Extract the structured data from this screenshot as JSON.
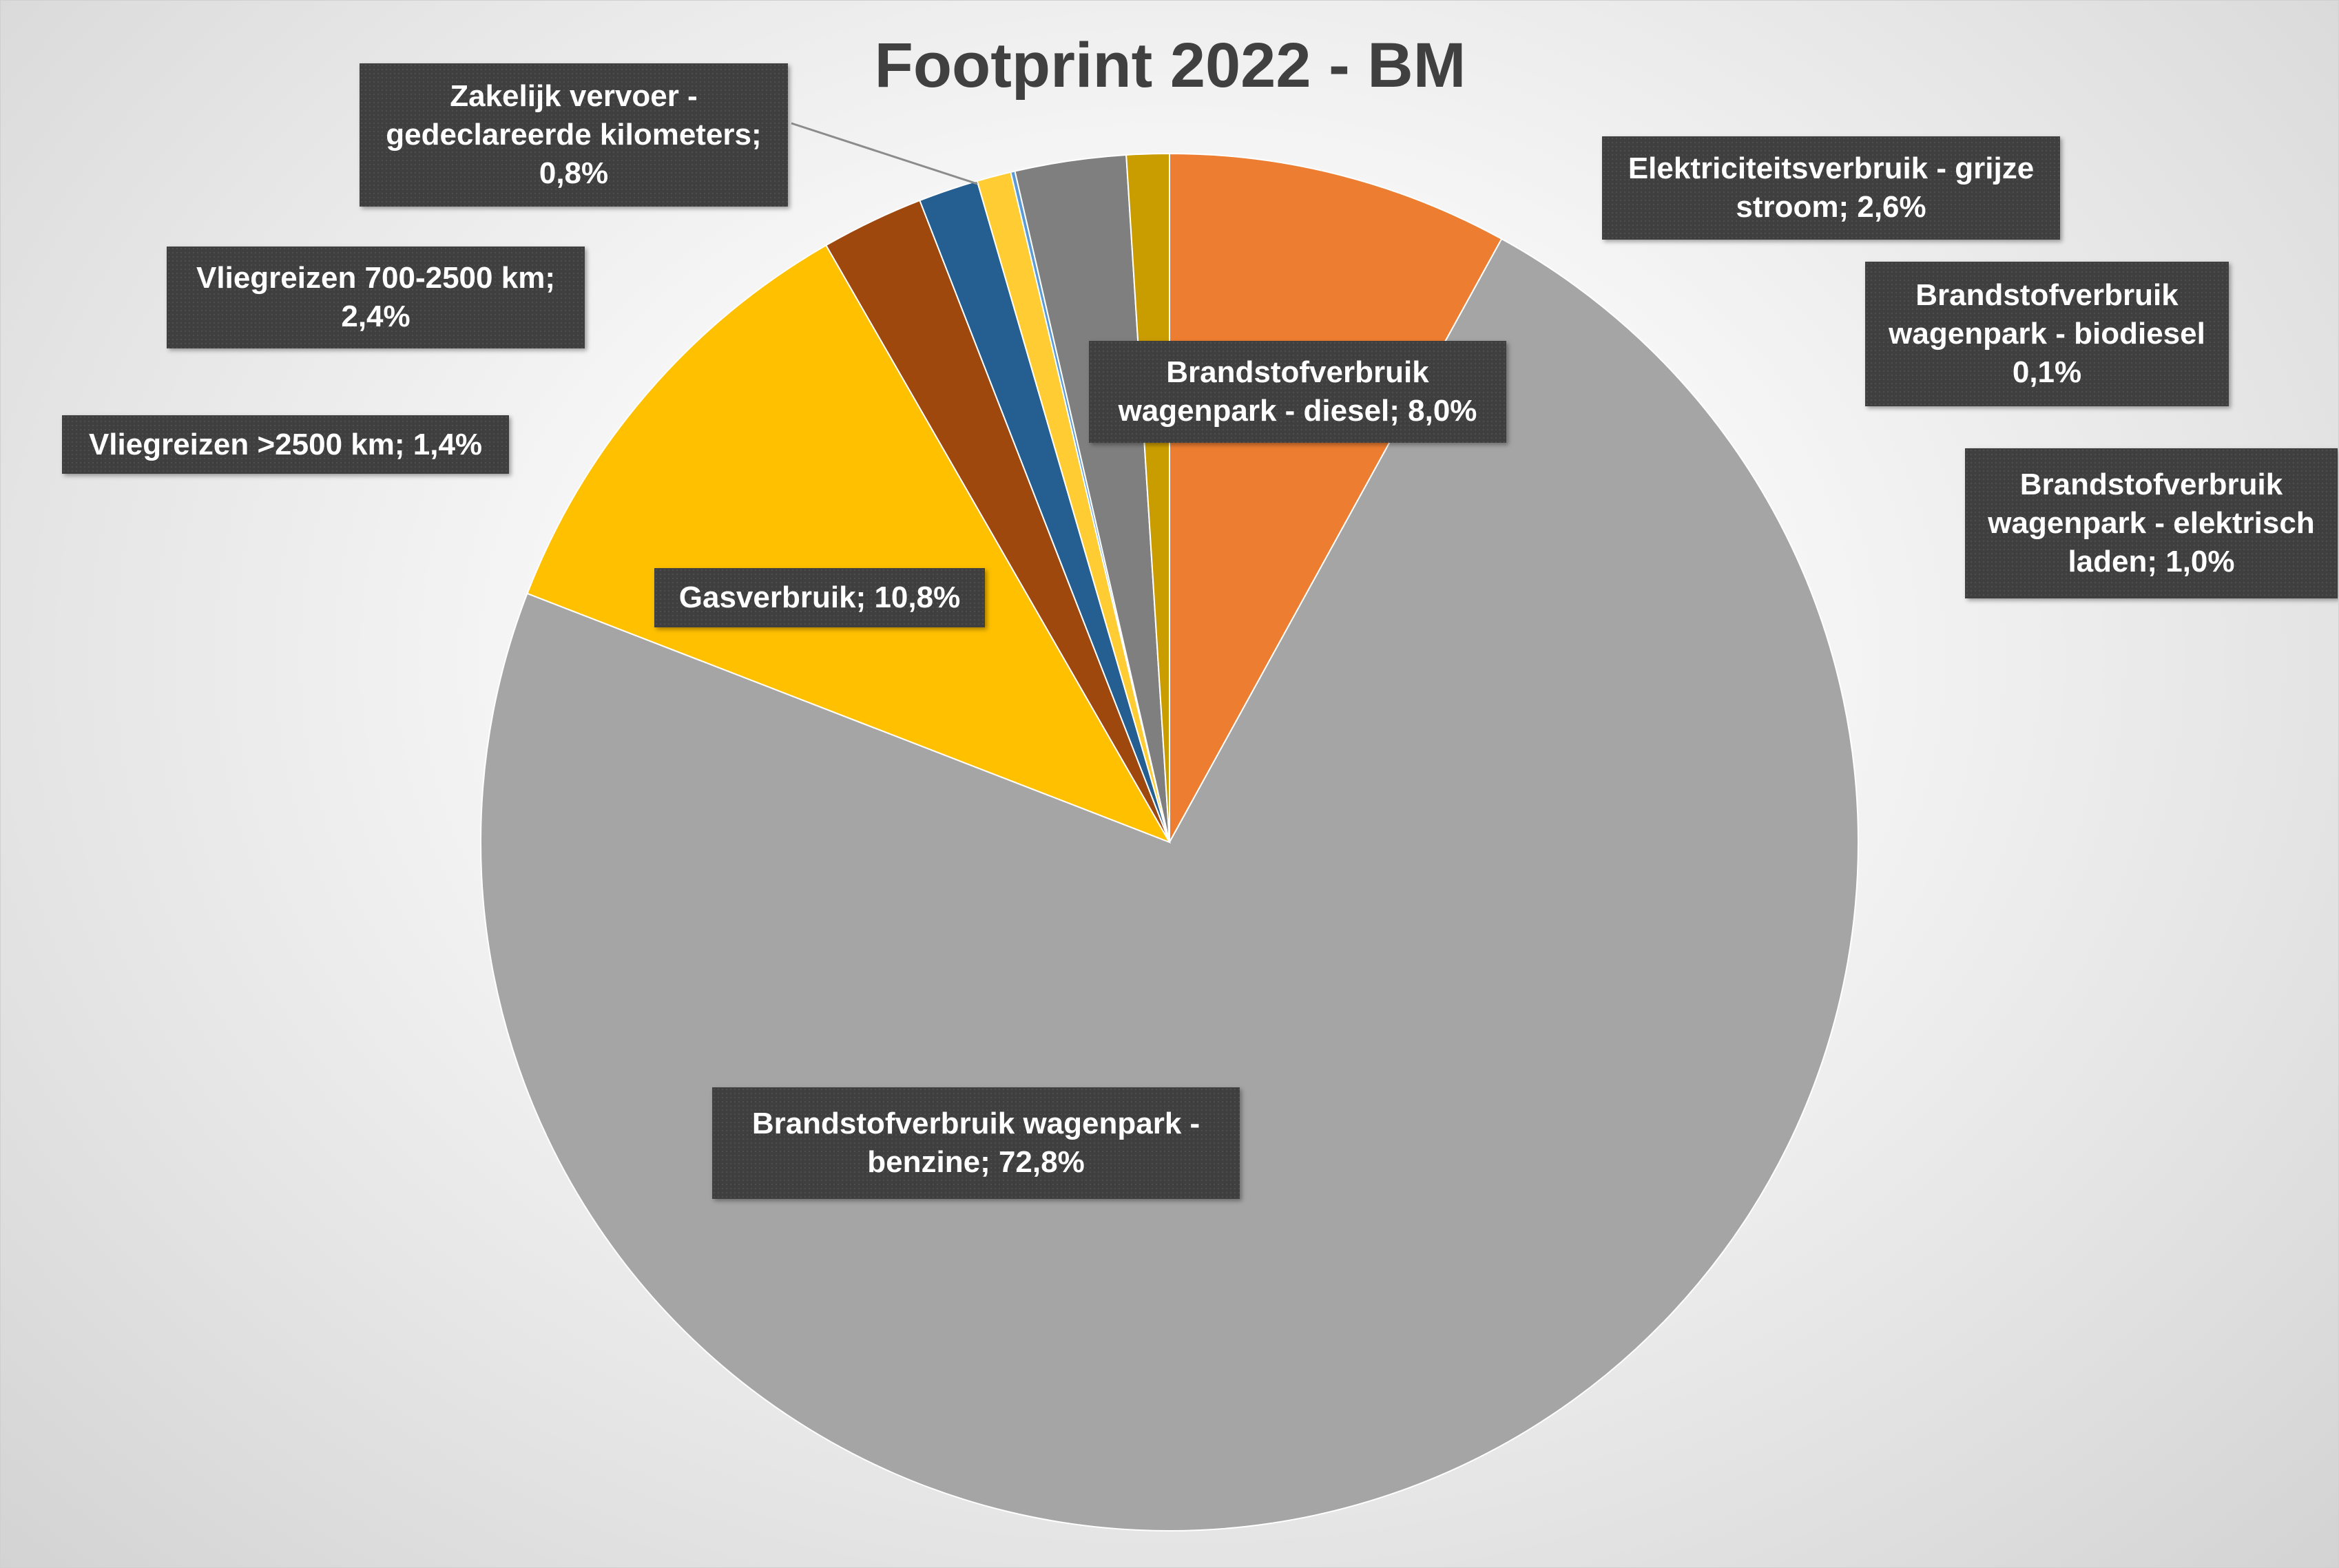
{
  "chart_data": {
    "type": "pie",
    "title": "Footprint 2022 - BM",
    "slices": [
      {
        "label": "Brandstofverbruik wagenpark - diesel",
        "value": 8.0,
        "display": "8,0%",
        "color": "#ED7D31"
      },
      {
        "label": "Brandstofverbruik wagenpark - benzine",
        "value": 72.8,
        "display": "72,8%",
        "color": "#A5A5A5"
      },
      {
        "label": "Gasverbruik",
        "value": 10.8,
        "display": "10,8%",
        "color": "#FFC000"
      },
      {
        "label": "Vliegreizen 700-2500 km",
        "value": 2.4,
        "display": "2,4%",
        "color": "#9E480E"
      },
      {
        "label": "Vliegreizen >2500 km",
        "value": 1.4,
        "display": "1,4%",
        "color": "#255E91"
      },
      {
        "label": "Zakelijk vervoer - gedeclareerde kilometers",
        "value": 0.8,
        "display": "0,8%",
        "color": "#FFCD33"
      },
      {
        "label": "Brandstofverbruik wagenpark - biodiesel",
        "value": 0.1,
        "display": "0,1%",
        "color": "#5B9BD5"
      },
      {
        "label": "Elektriciteitsverbruik - grijze stroom",
        "value": 2.6,
        "display": "2,6%",
        "color": "#7F7F7F"
      },
      {
        "label": "Brandstofverbruik wagenpark - elektrisch laden",
        "value": 1.0,
        "display": "1,0%",
        "color": "#C99C00"
      }
    ]
  },
  "labels": {
    "diesel": [
      "Brandstofverbruik",
      "wagenpark - diesel; 8,0%"
    ],
    "benzine": [
      "Brandstofverbruik wagenpark -",
      "benzine; 72,8%"
    ],
    "gas": [
      "Gasverbruik; 10,8%"
    ],
    "vlieg700": [
      "Vliegreizen 700-2500 km;",
      "2,4%"
    ],
    "vlieg2500": [
      "Vliegreizen >2500 km; 1,4%"
    ],
    "zakelijk": [
      "Zakelijk vervoer -",
      "gedeclareerde kilometers;",
      "0,8%"
    ],
    "elektriciteit": [
      "Elektriciteitsverbruik - grijze",
      "stroom; 2,6%"
    ],
    "biodiesel": [
      "Brandstofverbruik",
      "wagenpark - biodiesel",
      "0,1%"
    ],
    "elektrisch": [
      "Brandstofverbruik",
      "wagenpark - elektrisch",
      "laden; 1,0%"
    ]
  }
}
